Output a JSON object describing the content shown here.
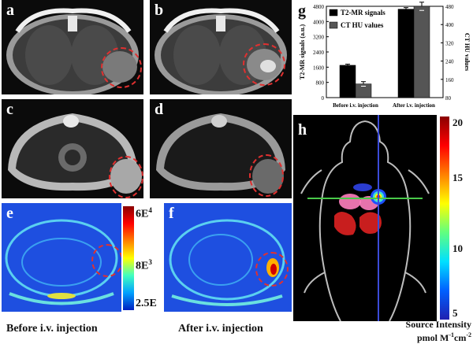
{
  "panels": {
    "a": "a",
    "b": "b",
    "c": "c",
    "d": "d",
    "e": "e",
    "f": "f",
    "g": "g",
    "h": "h"
  },
  "colorbar_ef": {
    "max": "6E",
    "max_exp": "4",
    "mid": "8E",
    "mid_exp": "3",
    "min": "2.5E"
  },
  "captions": {
    "before": "Before i.v. injection",
    "after": "After i.v. injection"
  },
  "chart_data": {
    "type": "bar",
    "categories": [
      "Before i.v. injection",
      "After i.v. injection"
    ],
    "series": [
      {
        "name": "T2-MR signals",
        "values": [
          1700,
          4650
        ],
        "errors": [
          60,
          80
        ],
        "color": "#000000"
      },
      {
        "name": "CT HU values",
        "values": [
          140,
          480
        ],
        "errors": [
          10,
          18
        ],
        "color": "#555555"
      }
    ],
    "ylabel_left": "T2-MR signals (a.u.)",
    "ylabel_right": "CT HU values",
    "yticks_left": [
      "0",
      "800",
      "1600",
      "2400",
      "3200",
      "4000",
      "4800"
    ],
    "yticks_right": [
      "80",
      "160",
      "240",
      "320",
      "400",
      "480"
    ],
    "ylim_left": [
      0,
      4800
    ],
    "ylim_right": [
      80,
      480
    ],
    "legend_position": "top-left"
  },
  "colorbar_h": {
    "ticks": [
      "20",
      "15",
      "10",
      "5"
    ],
    "label_line1": "Source Intensity",
    "label_line2": "pmol M",
    "label_sup1": "-1",
    "label_mid": "cm",
    "label_sup2": "-2"
  },
  "colors": {
    "dashed_circle": "#e03030",
    "crosshair_h": "#49c94a",
    "crosshair_v": "#3b4bd8"
  }
}
